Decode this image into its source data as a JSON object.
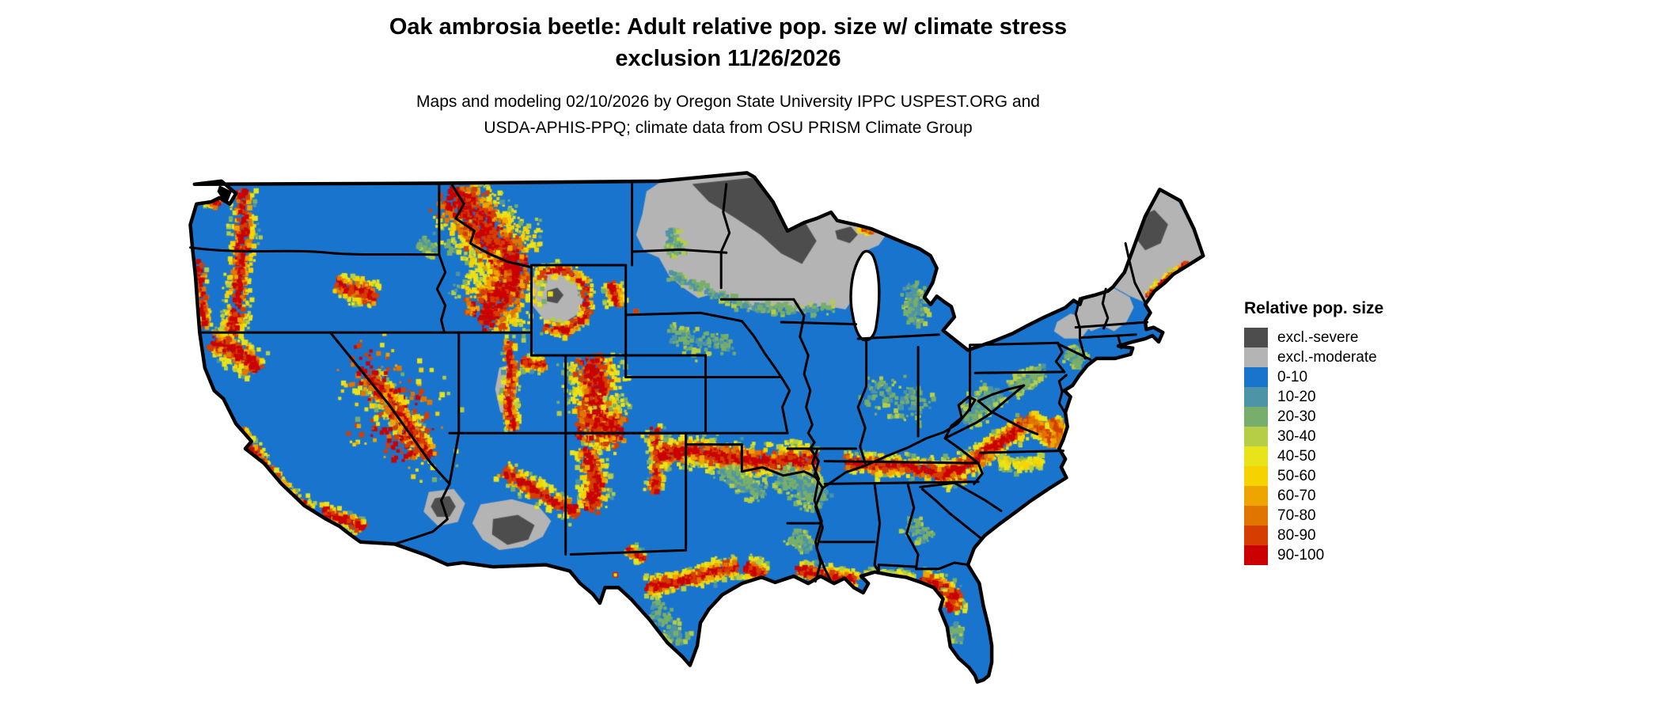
{
  "title": {
    "line1": "Oak ambrosia beetle: Adult relative pop. size w/ climate stress",
    "line2": "exclusion 11/26/2026"
  },
  "subtitle": {
    "line1": "Maps and modeling 02/10/2026 by Oregon State University IPPC USPEST.ORG and",
    "line2": "USDA-APHIS-PPQ; climate data from OSU PRISM Climate Group"
  },
  "legend": {
    "title": "Relative pop. size",
    "items": [
      {
        "key": "excl_severe",
        "label": "excl.-severe",
        "color": "#4d4d4d"
      },
      {
        "key": "excl_moderate",
        "label": "excl.-moderate",
        "color": "#b4b4b4"
      },
      {
        "key": "p0_10",
        "label": "0-10",
        "color": "#1874cd"
      },
      {
        "key": "p10_20",
        "label": "10-20",
        "color": "#4d94a6"
      },
      {
        "key": "p20_30",
        "label": "20-30",
        "color": "#77ae6b"
      },
      {
        "key": "p30_40",
        "label": "30-40",
        "color": "#b6ce45"
      },
      {
        "key": "p40_50",
        "label": "40-50",
        "color": "#e8e419"
      },
      {
        "key": "p50_60",
        "label": "50-60",
        "color": "#f6d300"
      },
      {
        "key": "p60_70",
        "label": "60-70",
        "color": "#eea500"
      },
      {
        "key": "p70_80",
        "label": "70-80",
        "color": "#e07600"
      },
      {
        "key": "p80_90",
        "label": "80-90",
        "color": "#d53e00"
      },
      {
        "key": "p90_100",
        "label": "90-100",
        "color": "#cb0000"
      }
    ]
  },
  "map": {
    "region": "Continental United States",
    "base_value_class": "0-10",
    "border_color": "#000000",
    "water_color": "#ffffff"
  }
}
